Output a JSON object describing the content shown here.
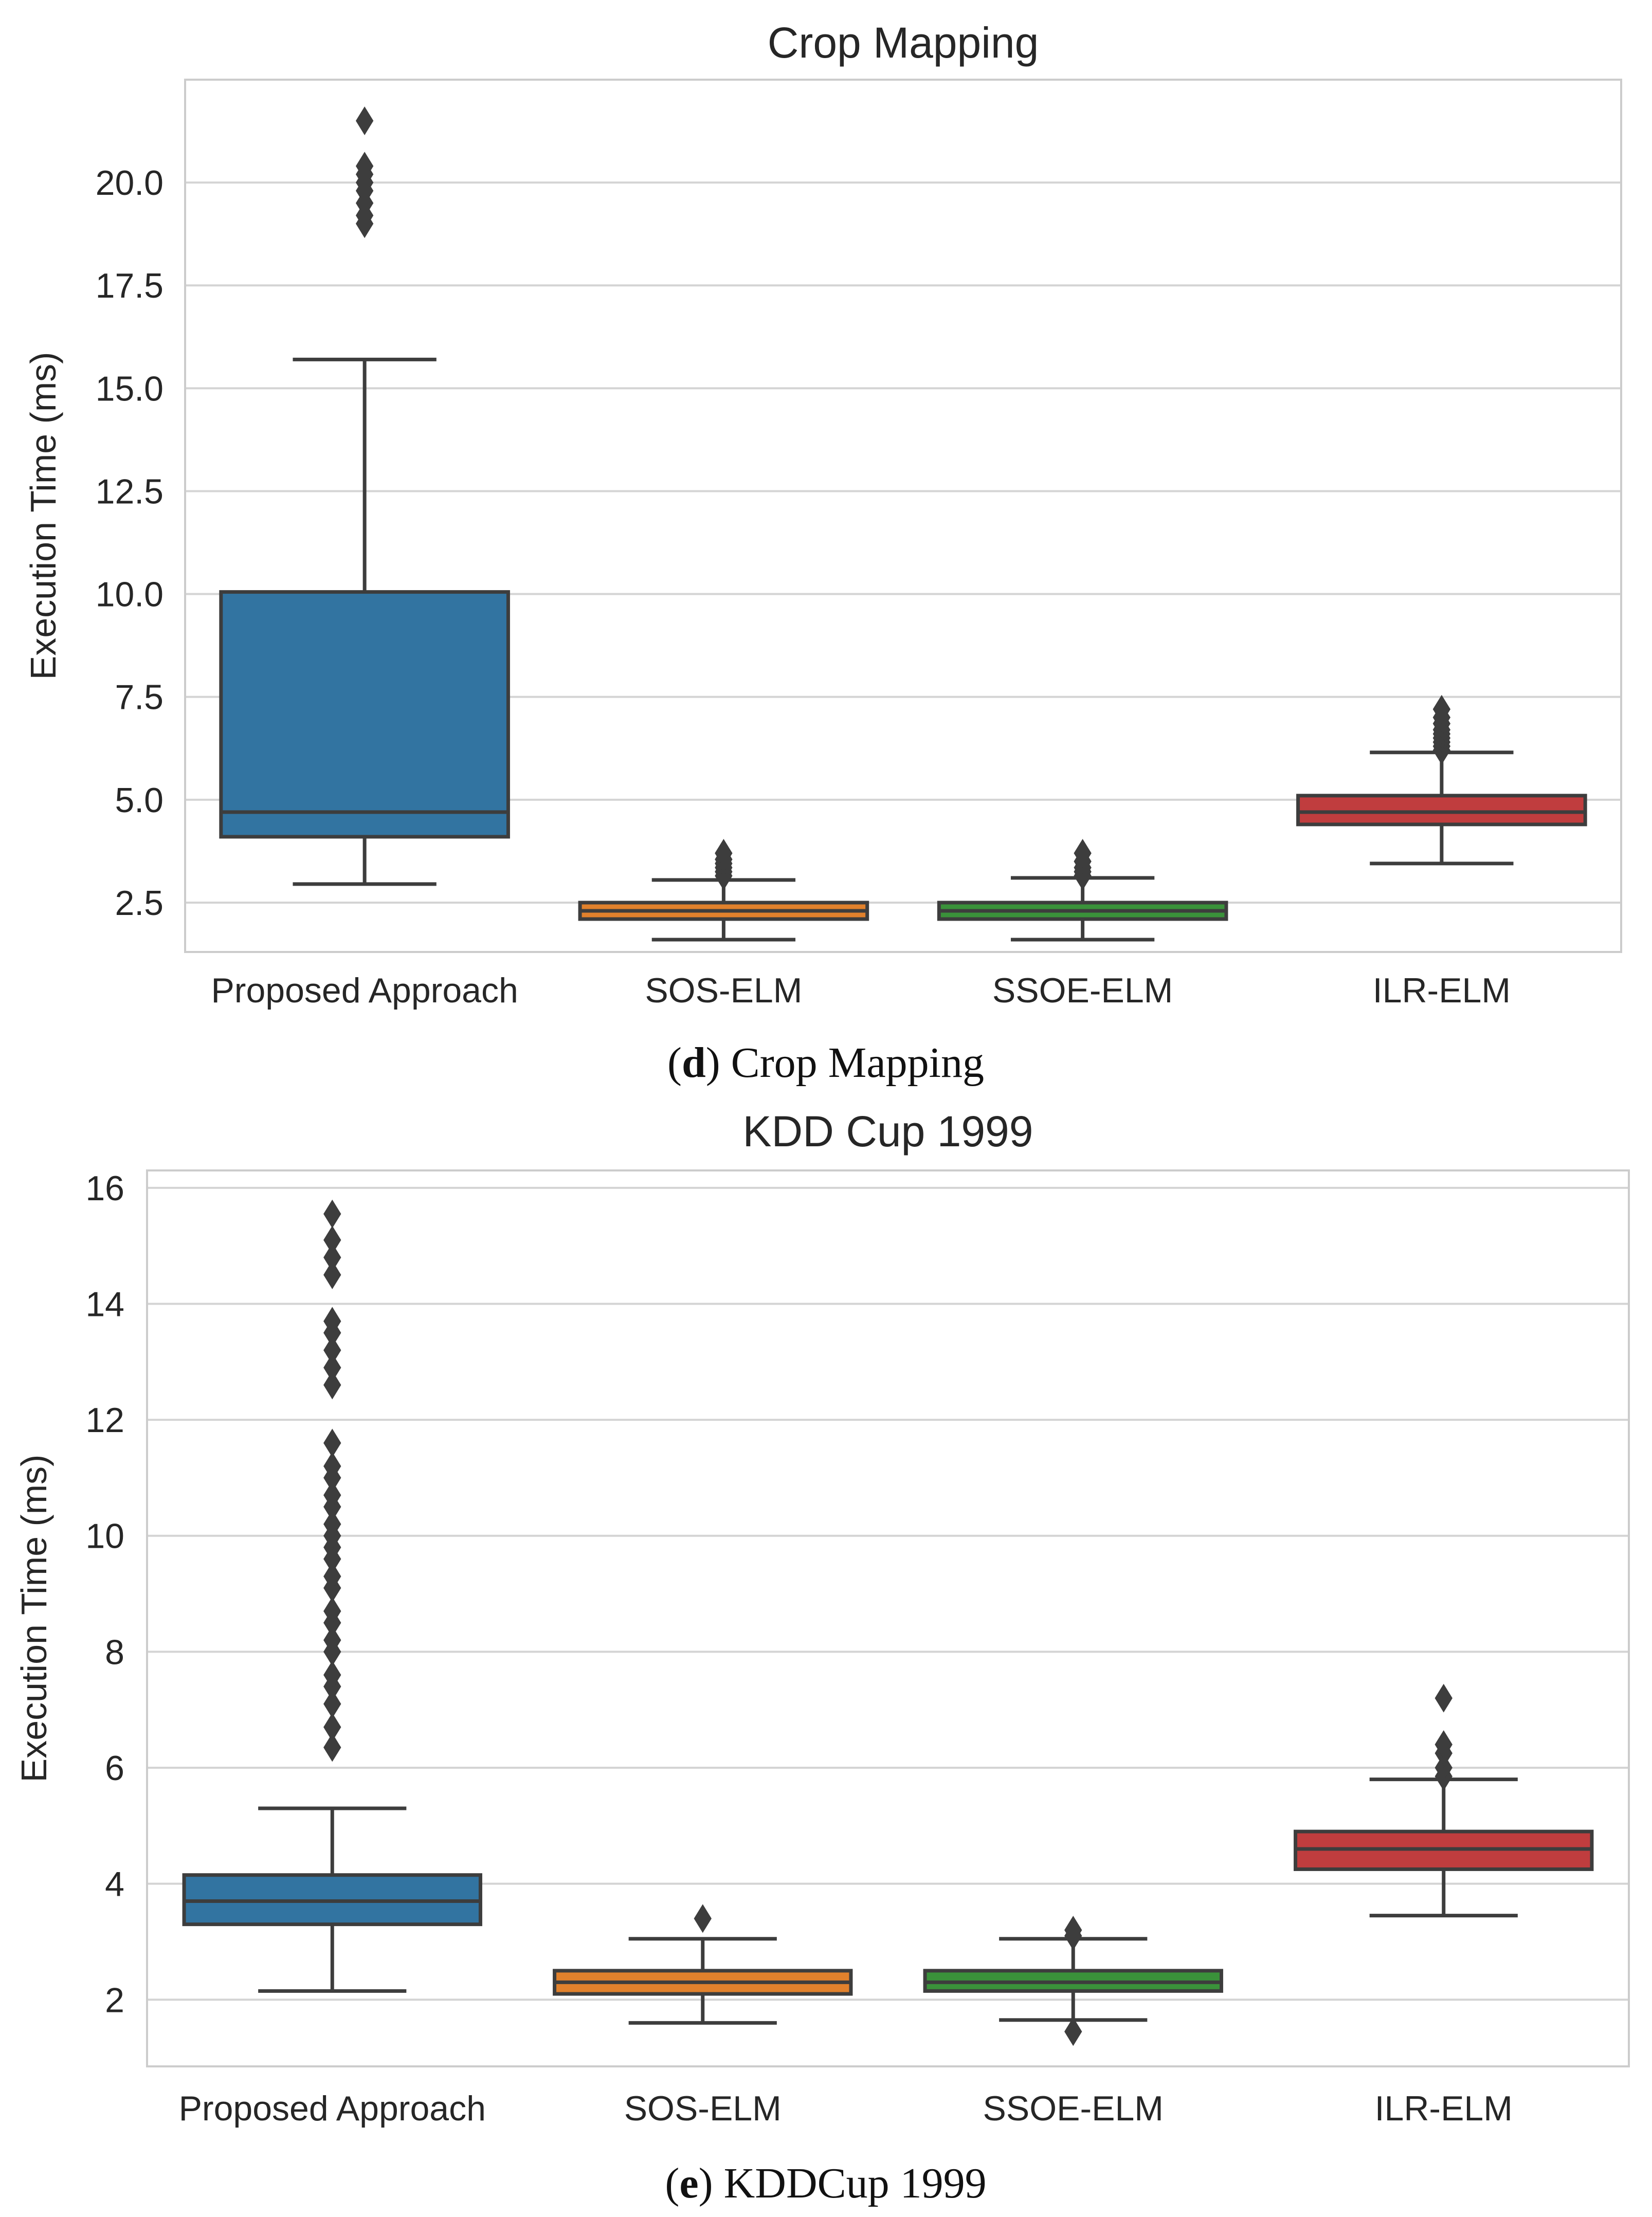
{
  "chart_data": [
    {
      "type": "box",
      "title": "Crop Mapping",
      "caption_letter": "d",
      "caption_text": "Crop Mapping",
      "xlabel": "",
      "ylabel": "Execution Time (ms)",
      "ylim": [
        1.3,
        22.5
      ],
      "yticks": [
        2.5,
        5.0,
        7.5,
        10.0,
        12.5,
        15.0,
        17.5,
        20.0
      ],
      "ytick_labels": [
        "2.5",
        "5.0",
        "7.5",
        "10.0",
        "12.5",
        "15.0",
        "17.5",
        "20.0"
      ],
      "grid": true,
      "categories": [
        "Proposed Approach",
        "SOS-ELM",
        "SSOE-ELM",
        "ILR-ELM"
      ],
      "series": [
        {
          "name": "Proposed Approach",
          "color": "#3274a1",
          "whisker_low": 2.95,
          "q1": 4.1,
          "median": 4.7,
          "q3": 10.05,
          "whisker_high": 15.7,
          "outliers": [
            19.0,
            19.2,
            19.5,
            19.8,
            20.0,
            20.2,
            20.4,
            21.5
          ]
        },
        {
          "name": "SOS-ELM",
          "color": "#e1812c",
          "whisker_low": 1.6,
          "q1": 2.1,
          "median": 2.3,
          "q3": 2.5,
          "whisker_high": 3.05,
          "outliers": [
            3.15,
            3.25,
            3.35,
            3.45,
            3.55,
            3.7
          ]
        },
        {
          "name": "SSOE-ELM",
          "color": "#3a923a",
          "whisker_low": 1.6,
          "q1": 2.1,
          "median": 2.3,
          "q3": 2.5,
          "whisker_high": 3.1,
          "outliers": [
            3.15,
            3.25,
            3.35,
            3.5,
            3.7
          ]
        },
        {
          "name": "ILR-ELM",
          "color": "#c03d3e",
          "whisker_low": 3.45,
          "q1": 4.4,
          "median": 4.7,
          "q3": 5.1,
          "whisker_high": 6.15,
          "outliers": [
            6.2,
            6.3,
            6.4,
            6.5,
            6.6,
            6.7,
            6.85,
            7.0,
            7.2
          ]
        }
      ]
    },
    {
      "type": "box",
      "title": "KDD Cup 1999",
      "caption_letter": "e",
      "caption_text": "KDDCup 1999",
      "xlabel": "",
      "ylabel": "Execution Time (ms)",
      "ylim": [
        0.85,
        16.3
      ],
      "yticks": [
        2,
        4,
        6,
        8,
        10,
        12,
        14,
        16
      ],
      "ytick_labels": [
        "2",
        "4",
        "6",
        "8",
        "10",
        "12",
        "14",
        "16"
      ],
      "grid": true,
      "categories": [
        "Proposed Approach",
        "SOS-ELM",
        "SSOE-ELM",
        "ILR-ELM"
      ],
      "series": [
        {
          "name": "Proposed Approach",
          "color": "#3274a1",
          "whisker_low": 2.15,
          "q1": 3.3,
          "median": 3.7,
          "q3": 4.15,
          "whisker_high": 5.3,
          "outliers": [
            6.35,
            6.7,
            7.1,
            7.4,
            7.6,
            8.0,
            8.2,
            8.5,
            8.7,
            9.1,
            9.3,
            9.6,
            9.8,
            10.0,
            10.2,
            10.5,
            10.7,
            11.0,
            11.2,
            11.6,
            12.6,
            12.9,
            13.2,
            13.5,
            13.7,
            14.5,
            14.8,
            15.1,
            15.55
          ]
        },
        {
          "name": "SOS-ELM",
          "color": "#e1812c",
          "whisker_low": 1.6,
          "q1": 2.1,
          "median": 2.3,
          "q3": 2.5,
          "whisker_high": 3.05,
          "outliers": [
            3.4
          ]
        },
        {
          "name": "SSOE-ELM",
          "color": "#3a923a",
          "whisker_low": 1.65,
          "q1": 2.15,
          "median": 2.3,
          "q3": 2.5,
          "whisker_high": 3.05,
          "outliers": [
            1.45,
            3.1,
            3.2
          ]
        },
        {
          "name": "ILR-ELM",
          "color": "#c03d3e",
          "whisker_low": 3.45,
          "q1": 4.25,
          "median": 4.6,
          "q3": 4.9,
          "whisker_high": 5.8,
          "outliers": [
            5.85,
            6.0,
            6.25,
            6.4,
            7.2
          ]
        }
      ]
    }
  ]
}
